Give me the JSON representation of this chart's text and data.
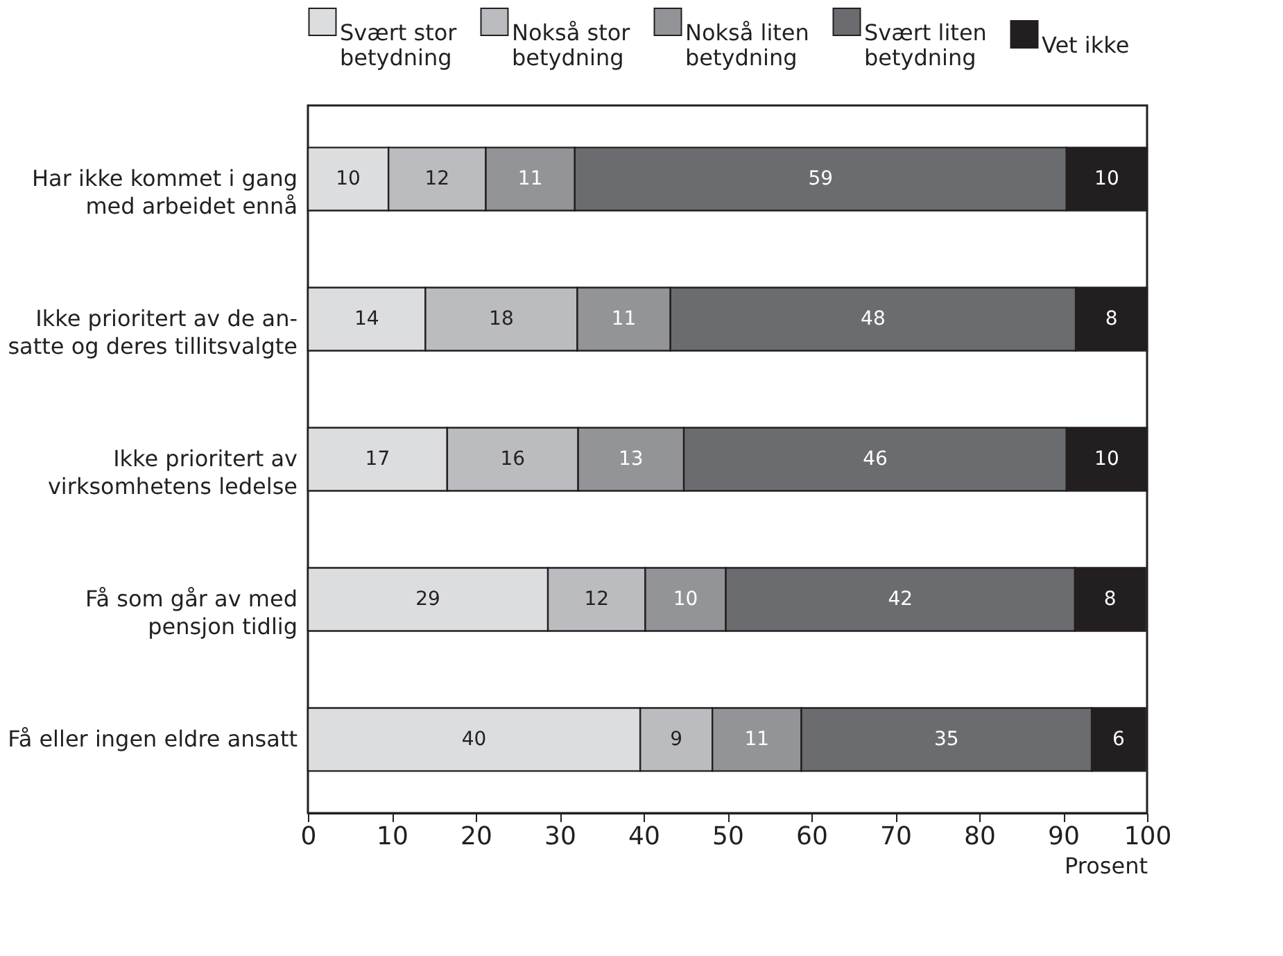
{
  "chart_data": {
    "type": "bar",
    "orientation": "horizontal",
    "stacked": true,
    "legend": "top",
    "grid": false,
    "xlabel": "Prosent",
    "categories": [
      "Har ikke kommet i gang\nmed arbeidet ennå",
      "Ikke prioritert av de an-\nsatte og deres tillitsvalgte",
      "Ikke prioritert av\nvirksomhetens ledelse",
      "Få som går av med\npensjon tidlig",
      "Få eller ingen eldre ansatt"
    ],
    "xlim": [
      0,
      100
    ],
    "xticks": [
      0,
      10,
      20,
      30,
      40,
      50,
      60,
      70,
      80,
      90,
      100
    ],
    "series": [
      {
        "name": "Svært stor\nbetydning",
        "color": "#dcdddf",
        "values": [
          9.6,
          14.0,
          16.6,
          28.6,
          39.6
        ],
        "value_labels": [
          "10",
          "14",
          "17",
          "29",
          "40"
        ]
      },
      {
        "name": "Nokså stor\nbetydning",
        "color": "#bbbcbf",
        "values": [
          11.6,
          18.1,
          15.6,
          11.6,
          8.6
        ],
        "value_labels": [
          "12",
          "18",
          "16",
          "12",
          "9"
        ]
      },
      {
        "name": "Nokså liten\nbetydning",
        "color": "#939497",
        "values": [
          10.6,
          11.1,
          12.6,
          9.6,
          10.6
        ],
        "value_labels": [
          "11",
          "11",
          "13",
          "10",
          "11"
        ]
      },
      {
        "name": "Svært liten\nbetydning",
        "color": "#6b6c70",
        "values": [
          58.6,
          48.3,
          45.6,
          41.6,
          34.6
        ],
        "value_labels": [
          "59",
          "48",
          "46",
          "42",
          "35"
        ]
      },
      {
        "name": "Vet ikke",
        "color": "#231f20",
        "values": [
          9.6,
          8.5,
          9.6,
          8.4,
          6.4
        ],
        "value_labels": [
          "10",
          "8",
          "10",
          "8",
          "6"
        ]
      }
    ]
  }
}
